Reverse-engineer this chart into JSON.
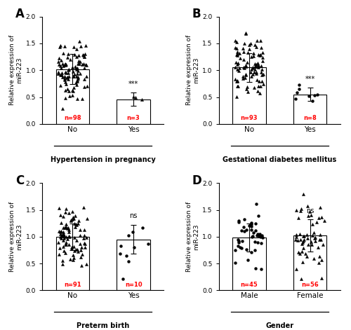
{
  "panels": [
    {
      "label": "A",
      "xlabel_groups": [
        "No",
        "Yes"
      ],
      "xlabel_title": "Hypertension in pregnancy",
      "n_values": [
        98,
        3
      ],
      "bar_means": [
        1.02,
        0.46
      ],
      "bar_sds": [
        0.28,
        0.12
      ],
      "significance": "***",
      "n_color": "red",
      "markers": [
        "^",
        "^"
      ],
      "ylim": [
        0.0,
        2.0
      ],
      "yticks": [
        0.0,
        0.5,
        1.0,
        1.5,
        2.0
      ]
    },
    {
      "label": "B",
      "xlabel_groups": [
        "No",
        "Yes"
      ],
      "xlabel_title": "Gestational diabetes mellitus",
      "n_values": [
        93,
        8
      ],
      "bar_means": [
        1.05,
        0.55
      ],
      "bar_sds": [
        0.27,
        0.12
      ],
      "significance": "***",
      "n_color": "red",
      "markers": [
        "^",
        "o"
      ],
      "ylim": [
        0.0,
        2.0
      ],
      "yticks": [
        0.0,
        0.5,
        1.0,
        1.5,
        2.0
      ]
    },
    {
      "label": "C",
      "xlabel_groups": [
        "No",
        "Yes"
      ],
      "xlabel_title": "Preterm birth",
      "n_values": [
        91,
        10
      ],
      "bar_means": [
        1.0,
        0.95
      ],
      "bar_sds": [
        0.25,
        0.27
      ],
      "significance": "ns",
      "n_color": "red",
      "markers": [
        "^",
        "o"
      ],
      "ylim": [
        0.0,
        2.0
      ],
      "yticks": [
        0.0,
        0.5,
        1.0,
        1.5,
        2.0
      ]
    },
    {
      "label": "D",
      "xlabel_groups": [
        "Male",
        "Female"
      ],
      "xlabel_title": "Gender",
      "n_values": [
        45,
        56
      ],
      "bar_means": [
        0.98,
        1.02
      ],
      "bar_sds": [
        0.26,
        0.3
      ],
      "significance": "ns",
      "n_color": "red",
      "markers": [
        "o",
        "^"
      ],
      "ylim": [
        0.0,
        2.0
      ],
      "yticks": [
        0.0,
        0.5,
        1.0,
        1.5,
        2.0
      ]
    }
  ],
  "ylabel": "Relative expression of\nmiR-223",
  "bar_color": "white",
  "bar_edgecolor": "black",
  "background_color": "white"
}
